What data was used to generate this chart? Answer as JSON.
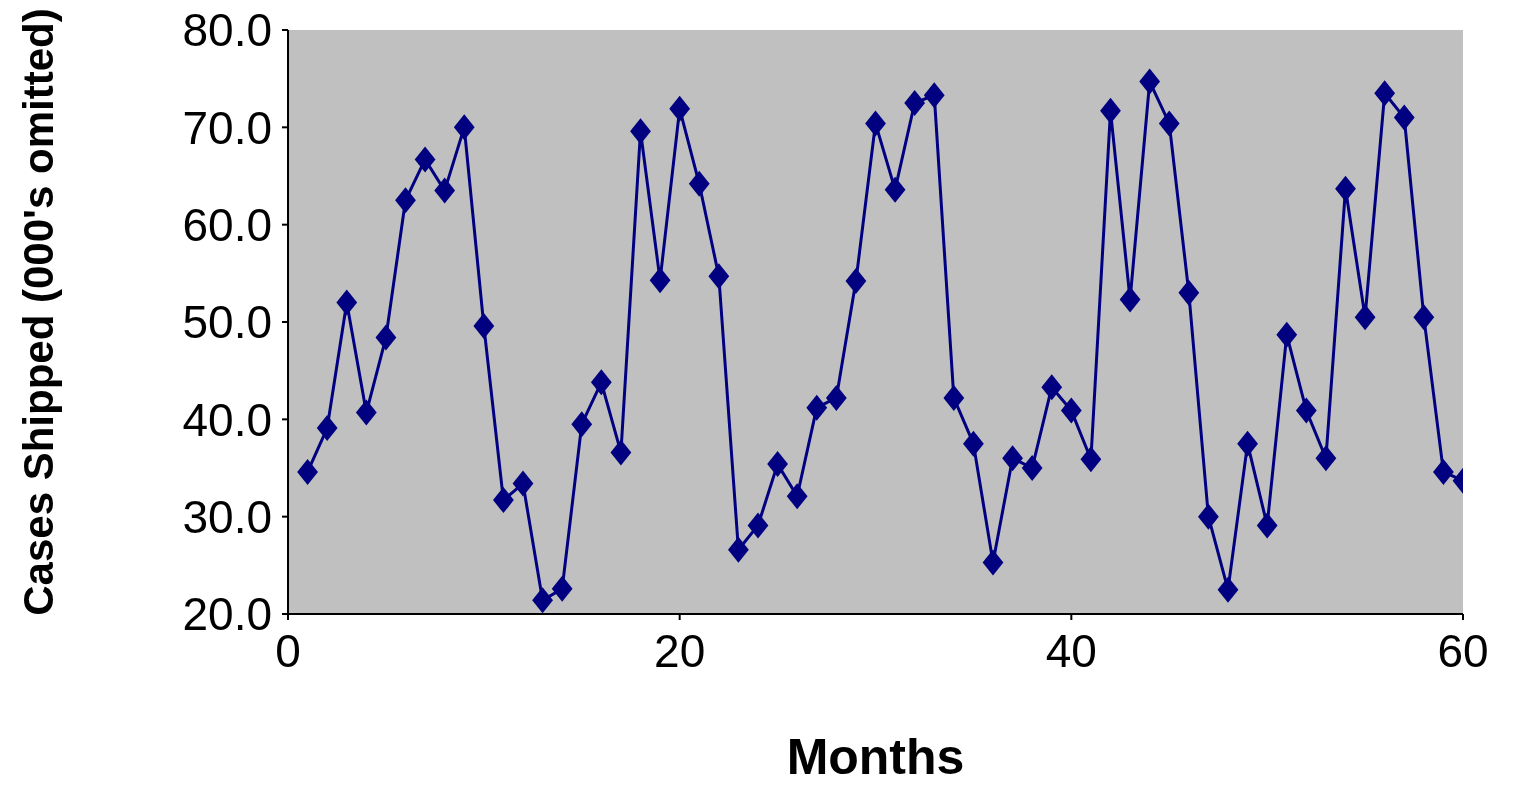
{
  "chart_data": {
    "type": "line",
    "xlabel": "Months",
    "ylabel": "Cases Shipped (000's omitted)",
    "x": [
      1,
      2,
      3,
      4,
      5,
      6,
      7,
      8,
      9,
      10,
      11,
      12,
      13,
      14,
      15,
      16,
      17,
      18,
      19,
      20,
      21,
      22,
      23,
      24,
      25,
      26,
      27,
      28,
      29,
      30,
      31,
      32,
      33,
      34,
      35,
      36,
      37,
      38,
      39,
      40,
      41,
      42,
      43,
      44,
      45,
      46,
      47,
      48,
      49,
      50,
      51,
      52,
      53,
      54,
      55,
      56,
      57,
      58,
      59,
      60
    ],
    "series": [
      {
        "color": "#000080",
        "values": [
          34.6,
          39.1,
          52.0,
          40.7,
          48.4,
          62.5,
          66.7,
          63.5,
          70.0,
          49.6,
          31.7,
          33.4,
          21.4,
          22.6,
          39.5,
          43.8,
          36.6,
          69.6,
          54.3,
          71.9,
          64.2,
          54.7,
          26.6,
          29.1,
          35.4,
          32.1,
          41.2,
          42.2,
          54.2,
          70.4,
          63.6,
          72.5,
          73.3,
          42.2,
          37.5,
          25.3,
          36.0,
          35.0,
          43.3,
          40.9,
          35.9,
          71.7,
          52.3,
          74.7,
          70.4,
          53.0,
          30.0,
          22.5,
          37.5,
          29.1,
          48.7,
          40.9,
          36.0,
          63.7,
          50.5,
          73.5,
          71.0,
          50.5,
          34.6,
          33.7
        ]
      }
    ],
    "xlim": [
      0,
      60
    ],
    "xticks": [
      0,
      20,
      40,
      60
    ],
    "ylim": [
      20,
      80
    ],
    "yticks": [
      {
        "value": 20,
        "label": "20.0"
      },
      {
        "value": 30,
        "label": "30.0"
      },
      {
        "value": 40,
        "label": "40.0"
      },
      {
        "value": 50,
        "label": "50.0"
      },
      {
        "value": 60,
        "label": "60.0"
      },
      {
        "value": 70,
        "label": "70.0"
      },
      {
        "value": 80,
        "label": "80.0"
      }
    ],
    "marker": "diamond",
    "line_style": "solid"
  }
}
